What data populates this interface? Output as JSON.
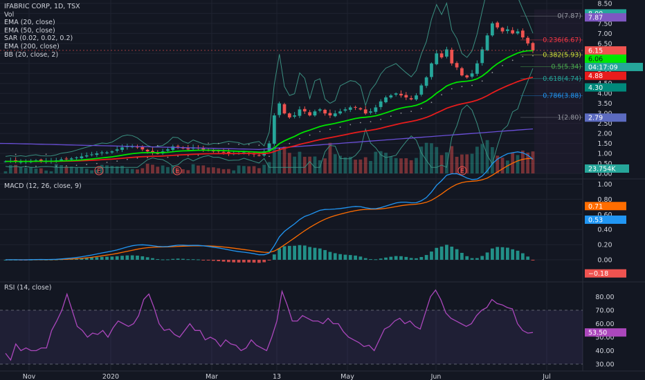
{
  "legend_main": {
    "symbol": "IFABRIC CORP, 1D, TSX",
    "vol": "Vol",
    "ema20": "EMA (20, close)",
    "ema50": "EMA (50, close)",
    "sar": "SAR (0.02, 0.02, 0.2)",
    "ema200": "EMA (200, close)",
    "bb": "BB (20, close, 2)"
  },
  "legend_macd": "MACD (12, 26, close, 9)",
  "legend_rsi": "RSI (14, close)",
  "colors": {
    "bg": "#131722",
    "grid": "#1f2330",
    "up": "#26a69a",
    "down": "#ef5350",
    "ema20": "#00e600",
    "ema50": "#e81c1c",
    "ema200": "#6a4fd8",
    "bb": "#3a8f80",
    "macd": "#2196f3",
    "signal": "#ff6d00",
    "rsi": "#ab47bc"
  },
  "badges": {
    "high": "8.00",
    "bb_upper": "7.87",
    "last_price": "6.15",
    "ema20": "6.06",
    "countdown": "04:17:09",
    "ema50": "4.88",
    "sma": "4.30",
    "ema200": "2.79",
    "volume": "23.754K",
    "macd_signal": "0.71",
    "macd": "0.53",
    "macd_hist": "−0.18",
    "rsi": "53.50"
  },
  "chart_data": [
    {
      "type": "candlestick",
      "title": "IFABRIC CORP, 1D, TSX",
      "y_ticks": [
        "8.50",
        "8.00",
        "7.50",
        "7.00",
        "6.50",
        "6.00",
        "5.50",
        "5.00",
        "4.50",
        "4.00",
        "3.50",
        "3.00",
        "2.50",
        "2.00",
        "1.50",
        "1.00",
        "0.50",
        "0.00"
      ],
      "x_ticks": [
        "Nov",
        "2020",
        "Mar",
        "13",
        "May",
        "Jun",
        "Jul"
      ],
      "ylim": [
        0,
        8.5
      ],
      "fibonacci": [
        {
          "label": "0(7.87)",
          "value": 7.87,
          "color": "#9598a1"
        },
        {
          "label": "0.236(6.67)",
          "value": 6.67,
          "color": "#f23645"
        },
        {
          "label": "0.382(5.93)",
          "value": 5.93,
          "color": "#cddc39"
        },
        {
          "label": "0.5(5.34)",
          "value": 5.34,
          "color": "#4caf50"
        },
        {
          "label": "0.618(4.74)",
          "value": 4.74,
          "color": "#26a69a"
        },
        {
          "label": "0.786(3.88)",
          "value": 3.88,
          "color": "#2196f3"
        },
        {
          "label": "1(2.80)",
          "value": 2.8,
          "color": "#9598a1"
        }
      ],
      "earnings_markers": [
        "E",
        "E",
        "E"
      ],
      "candles_close": [
        0.6,
        0.62,
        0.6,
        0.58,
        0.6,
        0.63,
        0.65,
        0.62,
        0.6,
        0.62,
        0.65,
        0.7,
        0.72,
        0.75,
        0.8,
        0.85,
        0.9,
        0.95,
        1.0,
        1.05,
        1.05,
        1.1,
        1.2,
        1.3,
        1.35,
        1.35,
        1.3,
        1.2,
        1.1,
        1.05,
        1.0,
        1.1,
        1.2,
        1.35,
        1.35,
        1.25,
        1.2,
        1.3,
        1.25,
        1.2,
        1.15,
        1.1,
        1.1,
        1.05,
        1.0,
        1.0,
        1.0,
        1.05,
        1.0,
        0.95,
        0.9,
        1.1,
        1.5,
        2.9,
        3.5,
        3.0,
        2.8,
        2.9,
        3.2,
        3.1,
        2.9,
        3.1,
        3.2,
        3.0,
        2.9,
        3.0,
        3.1,
        3.2,
        3.3,
        3.3,
        3.2,
        3.0,
        3.1,
        3.3,
        3.6,
        3.8,
        3.9,
        4.0,
        3.9,
        3.8,
        3.7,
        3.9,
        4.4,
        4.8,
        5.5,
        6.0,
        5.8,
        6.2,
        5.5,
        5.3,
        4.9,
        4.8,
        5.0,
        5.5,
        6.2,
        6.9,
        7.5,
        7.3,
        7.1,
        7.2,
        7.0,
        7.1,
        6.8,
        6.5,
        6.15
      ],
      "ema20_last": 6.06,
      "ema50_last": 4.88,
      "ema200_last": 2.79,
      "bb_upper_last": 7.87
    },
    {
      "type": "line",
      "title": "MACD (12, 26, close, 9)",
      "y_ticks": [
        "1.00",
        "0.80",
        "0.60",
        "0.40",
        "0.20",
        "0.00"
      ],
      "ylim": [
        -0.25,
        1.05
      ],
      "series": [
        {
          "name": "MACD",
          "last": 0.53
        },
        {
          "name": "Signal",
          "last": 0.71
        },
        {
          "name": "Histogram",
          "last": -0.18
        }
      ]
    },
    {
      "type": "line",
      "title": "RSI (14, close)",
      "y_ticks": [
        "80.00",
        "70.00",
        "60.00",
        "50.00",
        "40.00",
        "30.00"
      ],
      "ylim": [
        25,
        90
      ],
      "series": [
        {
          "name": "RSI",
          "last": 53.5,
          "values": [
            38,
            33,
            45,
            40,
            42,
            40,
            40,
            42,
            42,
            55,
            62,
            70,
            82,
            70,
            58,
            55,
            50,
            53,
            52,
            55,
            50,
            57,
            62,
            60,
            58,
            60,
            66,
            78,
            82,
            72,
            60,
            55,
            56,
            52,
            50,
            55,
            60,
            55,
            55,
            48,
            50,
            48,
            43,
            48,
            45,
            44,
            40,
            42,
            48,
            44,
            42,
            40,
            50,
            62,
            84,
            74,
            62,
            62,
            66,
            64,
            62,
            62,
            60,
            64,
            60,
            60,
            54,
            50,
            48,
            46,
            43,
            44,
            40,
            48,
            56,
            58,
            62,
            64,
            60,
            62,
            58,
            56,
            68,
            80,
            85,
            78,
            68,
            64,
            62,
            60,
            58,
            60,
            66,
            70,
            72,
            78,
            75,
            74,
            72,
            71,
            60,
            55,
            53,
            53.5
          ]
        }
      ]
    }
  ]
}
